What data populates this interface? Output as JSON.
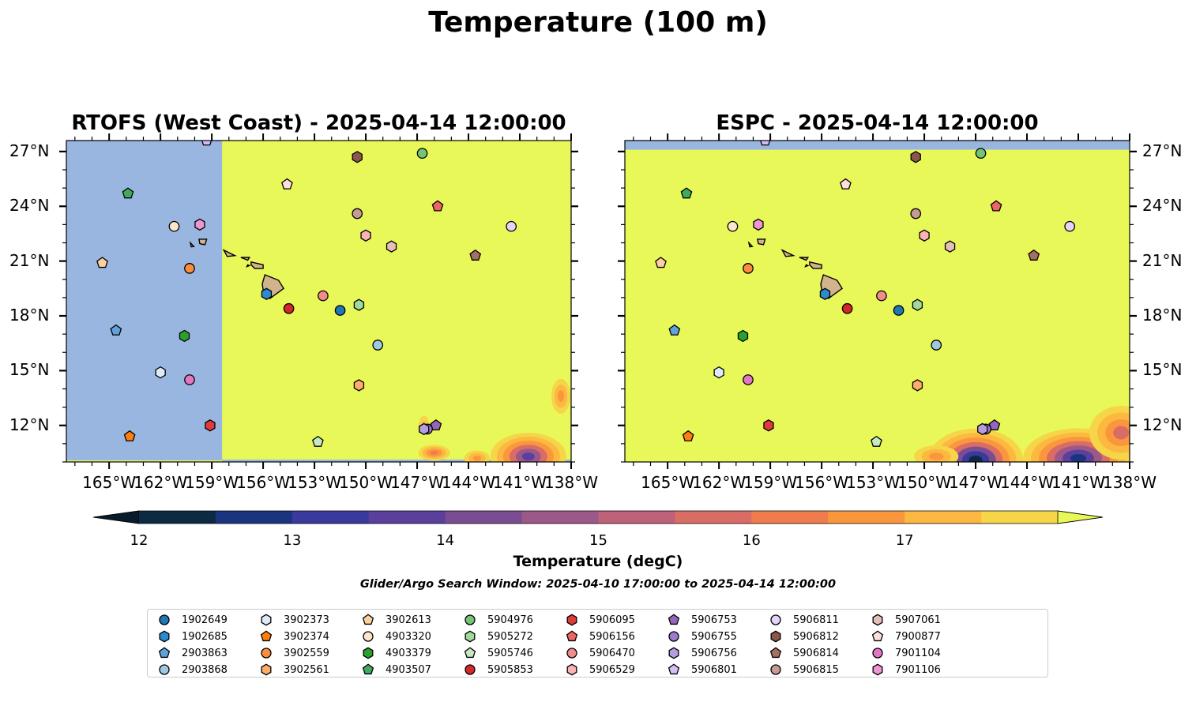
{
  "title": "Temperature (100 m)",
  "panels": [
    {
      "title": "RTOFS (West Coast) - 2025-04-14 12:00:00",
      "lat_labels_side": "left"
    },
    {
      "title": "ESPC - 2025-04-14 12:00:00",
      "lat_labels_side": "right"
    }
  ],
  "map": {
    "lon_range": [
      -167.5,
      -138
    ],
    "lat_range": [
      10,
      27.6
    ],
    "lon_ticks": [
      "165°W",
      "162°W",
      "159°W",
      "156°W",
      "153°W",
      "150°W",
      "147°W",
      "144°W",
      "141°W",
      "138°W"
    ],
    "lat_ticks": [
      "27°N",
      "24°N",
      "21°N",
      "18°N",
      "15°N",
      "12°N"
    ],
    "land_color": "#d2b48c",
    "nodata_color": "#98b6e0",
    "warm_color": "#e8f858"
  },
  "colorbar": {
    "label": "Temperature (degC)",
    "ticks": [
      "12",
      "13",
      "14",
      "15",
      "16",
      "17"
    ],
    "levels": [
      12.0,
      12.5,
      13.0,
      13.5,
      14.0,
      14.5,
      15.0,
      15.5,
      16.0,
      16.5,
      17.0,
      17.5
    ],
    "colors": [
      "#0d2a43",
      "#1a3480",
      "#3a3a9c",
      "#5a3f9d",
      "#7a4d93",
      "#9c5888",
      "#bf6179",
      "#da6c66",
      "#f07c4e",
      "#fa973d",
      "#fcb840",
      "#f6d549"
    ],
    "extend_min_color": "#071b2b",
    "extend_max_color": "#e8f858"
  },
  "search_window": "Glider/Argo Search Window: 2025-04-10 17:00:00 to 2025-04-14 12:00:00",
  "floats": [
    {
      "id": "1902649",
      "marker": "circle",
      "color": "#1f77b4",
      "lon": -151.5,
      "lat": 18.3
    },
    {
      "id": "1902685",
      "marker": "hexagon",
      "color": "#2c8ad0",
      "lon": -155.8,
      "lat": 19.2
    },
    {
      "id": "2903863",
      "marker": "pentagon",
      "color": "#5fa2dd",
      "lon": -164.6,
      "lat": 17.2
    },
    {
      "id": "2903868",
      "marker": "circle",
      "color": "#9ecae1",
      "lon": -149.3,
      "lat": 16.4
    },
    {
      "id": "3902373",
      "marker": "hexagon",
      "color": "#deebf7",
      "lon": -162.0,
      "lat": 14.9
    },
    {
      "id": "3902374",
      "marker": "pentagon",
      "color": "#ff7f0e",
      "lon": -163.8,
      "lat": 11.4
    },
    {
      "id": "3902559",
      "marker": "circle",
      "color": "#fd8d3c",
      "lon": -160.3,
      "lat": 20.6
    },
    {
      "id": "3902561",
      "marker": "hexagon",
      "color": "#fdae6b",
      "lon": -150.4,
      "lat": 14.2
    },
    {
      "id": "3902613",
      "marker": "pentagon",
      "color": "#fdd0a2",
      "lon": -165.4,
      "lat": 20.9
    },
    {
      "id": "4903320",
      "marker": "circle",
      "color": "#fee6ce",
      "lon": -161.2,
      "lat": 22.9
    },
    {
      "id": "4903379",
      "marker": "hexagon",
      "color": "#2ca02c",
      "lon": -160.6,
      "lat": 16.9
    },
    {
      "id": "4903507",
      "marker": "pentagon",
      "color": "#41ab5d",
      "lon": -163.9,
      "lat": 24.7
    },
    {
      "id": "5904976",
      "marker": "circle",
      "color": "#74c476",
      "lon": -146.7,
      "lat": 26.9
    },
    {
      "id": "5905272",
      "marker": "hexagon",
      "color": "#a1d99b",
      "lon": -150.4,
      "lat": 18.6
    },
    {
      "id": "5905746",
      "marker": "pentagon",
      "color": "#c7e9c0",
      "lon": -152.8,
      "lat": 11.1
    },
    {
      "id": "5905853",
      "marker": "circle",
      "color": "#d62728",
      "lon": -154.5,
      "lat": 18.4
    },
    {
      "id": "5906095",
      "marker": "hexagon",
      "color": "#e03b3b",
      "lon": -159.1,
      "lat": 12.0
    },
    {
      "id": "5906156",
      "marker": "pentagon",
      "color": "#ef6464",
      "lon": -145.8,
      "lat": 24.0
    },
    {
      "id": "5906470",
      "marker": "circle",
      "color": "#f28b8b",
      "lon": -152.5,
      "lat": 19.1
    },
    {
      "id": "5906529",
      "marker": "hexagon",
      "color": "#fbb4b4",
      "lon": -150.0,
      "lat": 22.4
    },
    {
      "id": "5906753",
      "marker": "pentagon",
      "color": "#9467bd",
      "lon": -145.9,
      "lat": 12.0
    },
    {
      "id": "5906755",
      "marker": "circle",
      "color": "#9e7bcc",
      "lon": -146.4,
      "lat": 11.8
    },
    {
      "id": "5906756",
      "marker": "hexagon",
      "color": "#b59de0",
      "lon": -146.6,
      "lat": 11.8
    },
    {
      "id": "5906801",
      "marker": "pentagon",
      "color": "#d4bff5",
      "lon": -159.3,
      "lat": 27.6
    },
    {
      "id": "5906811",
      "marker": "circle",
      "color": "#e2d4fa",
      "lon": -141.5,
      "lat": 22.9
    },
    {
      "id": "5906812",
      "marker": "hexagon",
      "color": "#8c564b",
      "lon": -150.5,
      "lat": 26.7
    },
    {
      "id": "5906814",
      "marker": "pentagon",
      "color": "#a47063",
      "lon": -143.6,
      "lat": 21.3
    },
    {
      "id": "5906815",
      "marker": "circle",
      "color": "#c49c94",
      "lon": -150.5,
      "lat": 23.6
    },
    {
      "id": "5907061",
      "marker": "hexagon",
      "color": "#e4c0b8",
      "lon": -148.5,
      "lat": 21.8
    },
    {
      "id": "7900877",
      "marker": "pentagon",
      "color": "#fde0dd",
      "lon": -154.6,
      "lat": 25.2
    },
    {
      "id": "7901104",
      "marker": "circle",
      "color": "#e377c2",
      "lon": -160.3,
      "lat": 14.5
    },
    {
      "id": "7901106",
      "marker": "hexagon",
      "color": "#f095d3",
      "lon": -159.7,
      "lat": 23.0
    }
  ]
}
